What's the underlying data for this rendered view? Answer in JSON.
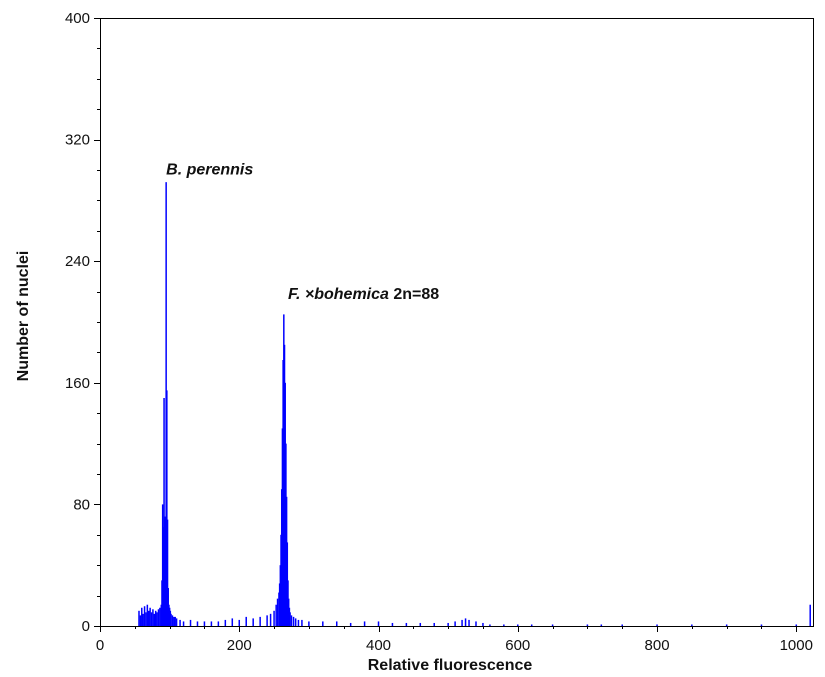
{
  "chart_data": {
    "type": "bar",
    "title": "",
    "xlabel": "Relative fluorescence",
    "ylabel": "Number of nuclei",
    "xlim": [
      0,
      1024
    ],
    "ylim": [
      0,
      400
    ],
    "x_ticks": [
      0,
      200,
      400,
      600,
      800,
      1000
    ],
    "y_ticks": [
      0,
      80,
      160,
      240,
      320,
      400
    ],
    "grid": false,
    "color": "#0000ff",
    "annotations": [
      {
        "parts": [
          {
            "text": "B. perennis",
            "italic": true
          }
        ],
        "x": 95,
        "y": 297
      },
      {
        "parts": [
          {
            "text": "F. ×bohemica",
            "italic": true
          },
          {
            "text": " 2n=88",
            "italic": false
          }
        ],
        "x": 270,
        "y": 215
      }
    ],
    "peaks": [
      {
        "x": 95,
        "y": 292
      },
      {
        "x": 264,
        "y": 205
      }
    ],
    "series": [
      {
        "x": [
          56,
          58,
          60,
          62,
          64,
          66,
          68,
          70,
          72,
          74,
          76,
          78,
          80,
          82,
          84,
          86,
          88,
          89,
          90,
          91,
          92,
          93,
          94,
          95,
          96,
          97,
          98,
          99,
          100,
          101,
          102,
          104,
          106,
          108,
          110,
          115,
          120,
          130,
          140,
          150,
          160,
          170,
          180,
          190,
          200,
          210,
          220,
          230,
          240,
          245,
          250,
          253,
          255,
          257,
          258,
          259,
          260,
          261,
          262,
          263,
          264,
          265,
          266,
          267,
          268,
          269,
          270,
          271,
          272,
          273,
          275,
          278,
          281,
          285,
          290,
          300,
          320,
          340,
          360,
          380,
          400,
          420,
          440,
          460,
          480,
          500,
          510,
          520,
          525,
          530,
          540,
          550,
          560,
          580,
          600,
          620,
          650,
          700,
          720,
          750,
          800,
          850,
          900,
          950,
          1000,
          1020
        ],
        "y": [
          10,
          7,
          12,
          8,
          13,
          9,
          14,
          10,
          12,
          9,
          11,
          8,
          10,
          9,
          11,
          12,
          14,
          30,
          80,
          65,
          150,
          72,
          70,
          292,
          155,
          70,
          25,
          14,
          12,
          10,
          8,
          7,
          6,
          6,
          5,
          4,
          3,
          4,
          3,
          3,
          3,
          3,
          4,
          5,
          4,
          6,
          5,
          6,
          7,
          8,
          10,
          14,
          18,
          22,
          28,
          40,
          60,
          90,
          130,
          175,
          205,
          185,
          160,
          120,
          85,
          55,
          30,
          18,
          12,
          9,
          7,
          6,
          5,
          4,
          4,
          3,
          3,
          3,
          2,
          3,
          3,
          2,
          2,
          2,
          2,
          2,
          3,
          4,
          5,
          4,
          3,
          2,
          1,
          1,
          1,
          1,
          1,
          1,
          1,
          1,
          1,
          1,
          1,
          1,
          1,
          14
        ]
      }
    ]
  }
}
